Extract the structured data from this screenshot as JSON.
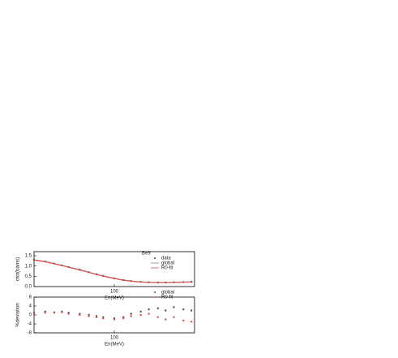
{
  "chart_data": [
    {
      "type": "line",
      "annotation": "Be9",
      "x_label": "En(MeV)",
      "y_label": "σtot(barns)",
      "log_x": true,
      "legend": "upper right",
      "x": [
        20,
        25,
        30,
        35,
        40,
        50,
        60,
        70,
        80,
        100,
        120,
        140,
        170,
        200,
        240,
        280,
        330,
        400,
        470
      ],
      "xlim": [
        20,
        500
      ],
      "xticks": [
        100
      ],
      "ylim": [
        0,
        1.7
      ],
      "yticks": [
        {
          "value": 0,
          "label": "0.0"
        },
        {
          "value": 0.5,
          "label": "0.5"
        },
        {
          "value": 1,
          "label": "1.0"
        },
        {
          "value": 1.5,
          "label": "1.5"
        }
      ],
      "series": [
        {
          "name": "data",
          "color": "#444444",
          "style": "points",
          "values": [
            1.3,
            1.22,
            1.12,
            1.03,
            0.95,
            0.82,
            0.7,
            0.6,
            0.52,
            0.4,
            0.32,
            0.27,
            0.23,
            0.21,
            0.2,
            0.2,
            0.21,
            0.22,
            0.23
          ]
        },
        {
          "name": "global",
          "color": "#888888",
          "style": "line",
          "values": [
            1.3,
            1.22,
            1.12,
            1.03,
            0.95,
            0.82,
            0.7,
            0.6,
            0.52,
            0.4,
            0.32,
            0.27,
            0.23,
            0.21,
            0.2,
            0.2,
            0.21,
            0.22,
            0.23
          ]
        },
        {
          "name": "R0-fit",
          "color": "#e05050",
          "style": "line",
          "values": [
            1.29,
            1.21,
            1.11,
            1.02,
            0.94,
            0.81,
            0.69,
            0.59,
            0.51,
            0.39,
            0.31,
            0.26,
            0.22,
            0.2,
            0.19,
            0.19,
            0.2,
            0.21,
            0.22
          ]
        }
      ]
    },
    {
      "type": "scatter",
      "x_label": "En(MeV)",
      "y_label": "%deviation",
      "log_x": true,
      "legend": "upper right",
      "x": [
        20,
        25,
        30,
        35,
        40,
        50,
        60,
        70,
        80,
        100,
        120,
        140,
        170,
        200,
        240,
        280,
        330,
        400,
        470
      ],
      "xlim": [
        20,
        500
      ],
      "xticks": [
        100
      ],
      "ylim": [
        -8,
        8
      ],
      "yticks": [
        -8,
        -4,
        0,
        4,
        8
      ],
      "series": [
        {
          "name": "global",
          "color": "#555555",
          "style": "points",
          "values": [
            1,
            1.5,
            1.2,
            1.5,
            1,
            0.5,
            0,
            -0.5,
            -1,
            -1.5,
            -1,
            0.5,
            1.5,
            2.5,
            3,
            2,
            3.5,
            2.5,
            2
          ]
        },
        {
          "name": "R0-fit",
          "color": "#e05050",
          "style": "points",
          "values": [
            0.5,
            1,
            1,
            1.2,
            0.5,
            0,
            -0.5,
            -1,
            -1.5,
            -2,
            -1.5,
            -0.5,
            0,
            0.5,
            -1,
            -2,
            -1,
            -2.5,
            -3
          ]
        }
      ]
    }
  ]
}
